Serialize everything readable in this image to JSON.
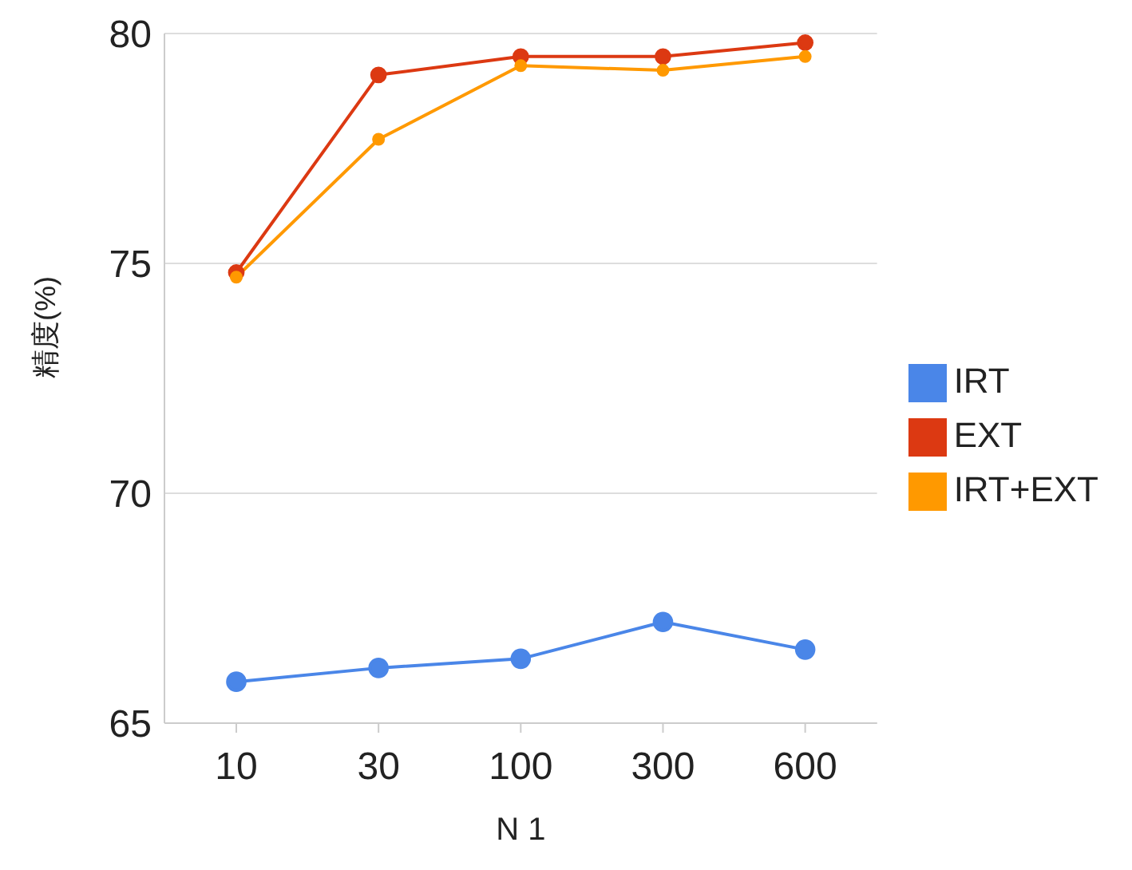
{
  "chart_data": {
    "type": "line",
    "xlabel": "N  1",
    "ylabel": "精度(%)",
    "categories": [
      "10",
      "30",
      "100",
      "300",
      "600"
    ],
    "series": [
      {
        "name": "IRT",
        "color": "#4a86e8",
        "values": [
          65.9,
          66.2,
          66.4,
          67.2,
          66.6
        ]
      },
      {
        "name": "EXT",
        "color": "#dc3912",
        "values": [
          74.8,
          79.1,
          79.5,
          79.5,
          79.8
        ]
      },
      {
        "name": "IRT+EXT",
        "color": "#ff9900",
        "values": [
          74.7,
          77.7,
          79.3,
          79.2,
          79.5
        ]
      }
    ],
    "ylim": [
      65,
      80
    ],
    "yticks": [
      65,
      70,
      75,
      80
    ],
    "grid": "y",
    "legend": "right",
    "marker": "circle",
    "line_style": "solid"
  }
}
